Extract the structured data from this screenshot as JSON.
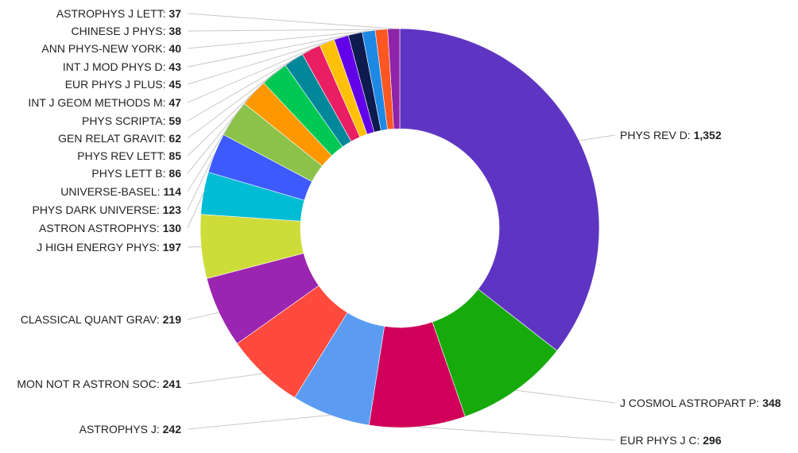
{
  "chart_data": {
    "type": "pie",
    "donut": true,
    "start_angle_deg": 0,
    "direction": "clockwise",
    "legend": "none",
    "slices": [
      {
        "label": "PHYS REV D",
        "value": 1352,
        "display": "1,352",
        "color": "#5e35c2"
      },
      {
        "label": "J COSMOL ASTROPART P",
        "value": 348,
        "display": "348",
        "color": "#17aa0c"
      },
      {
        "label": "EUR PHYS J C",
        "value": 296,
        "display": "296",
        "color": "#d0005a"
      },
      {
        "label": "ASTROPHYS J",
        "value": 242,
        "display": "242",
        "color": "#5b9cf2"
      },
      {
        "label": "MON NOT R ASTRON SOC",
        "value": 241,
        "display": "241",
        "color": "#ff4a3d"
      },
      {
        "label": "CLASSICAL QUANT GRAV",
        "value": 219,
        "display": "219",
        "color": "#9b25b0"
      },
      {
        "label": "J HIGH ENERGY PHYS",
        "value": 197,
        "display": "197",
        "color": "#cddc39"
      },
      {
        "label": "ASTRON ASTROPHYS",
        "value": 130,
        "display": "130",
        "color": "#00bcd4"
      },
      {
        "label": "PHYS DARK UNIVERSE",
        "value": 123,
        "display": "123",
        "color": "#3d5afe"
      },
      {
        "label": "UNIVERSE-BASEL",
        "value": 114,
        "display": "114",
        "color": "#8bc34a"
      },
      {
        "label": "PHYS LETT B",
        "value": 86,
        "display": "86",
        "color": "#ff9800"
      },
      {
        "label": "PHYS REV LETT",
        "value": 85,
        "display": "85",
        "color": "#00c853"
      },
      {
        "label": "GEN RELAT GRAVIT",
        "value": 62,
        "display": "62",
        "color": "#00879a"
      },
      {
        "label": "PHYS SCRIPTA",
        "value": 59,
        "display": "59",
        "color": "#e91e63"
      },
      {
        "label": "INT J GEOM METHODS M",
        "value": 47,
        "display": "47",
        "color": "#ffc107"
      },
      {
        "label": "EUR PHYS J PLUS",
        "value": 45,
        "display": "45",
        "color": "#6200ea"
      },
      {
        "label": "INT J MOD PHYS D",
        "value": 43,
        "display": "43",
        "color": "#0d1b4f"
      },
      {
        "label": "ANN PHYS-NEW YORK",
        "value": 40,
        "display": "40",
        "color": "#1e88e5"
      },
      {
        "label": "CHINESE J PHYS",
        "value": 38,
        "display": "38",
        "color": "#ff5722"
      },
      {
        "label": "ASTROPHYS J LETT",
        "value": 37,
        "display": "37",
        "color": "#8e24aa"
      }
    ]
  }
}
